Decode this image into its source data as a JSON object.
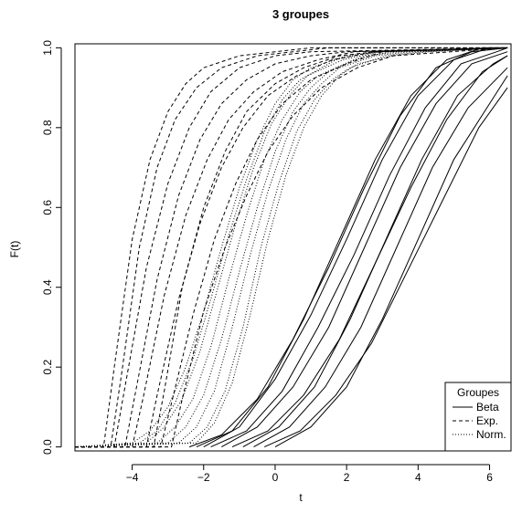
{
  "chart_data": {
    "type": "line",
    "title": "3 groupes",
    "xlabel": "t",
    "ylabel": "F(t)",
    "xlim": [
      -5.6,
      6.6
    ],
    "ylim": [
      -0.01,
      1.01
    ],
    "xticks": [
      -4,
      -2,
      0,
      2,
      4,
      6
    ],
    "xtick_labels": [
      "−4",
      "−2",
      "0",
      "2",
      "4",
      "6"
    ],
    "yticks": [
      0.0,
      0.2,
      0.4,
      0.6,
      0.8,
      1.0
    ],
    "ytick_labels": [
      "0.0",
      "0.2",
      "0.4",
      "0.6",
      "0.8",
      "1.0"
    ],
    "grid": false,
    "legend": {
      "title": "Groupes",
      "position": "bottom-right",
      "entries": [
        {
          "label": "Beta",
          "style": "solid"
        },
        {
          "label": "Exp.",
          "style": "dashed"
        },
        {
          "label": "Norm.",
          "style": "dotted"
        }
      ]
    },
    "series": [
      {
        "style": "solid",
        "curves": [
          {
            "x": [
              -2.4,
              -1.5,
              -0.5,
              0.5,
              1.5,
              2.5,
              3.5,
              4.5,
              5.5,
              6.5
            ],
            "y": [
              0.0,
              0.03,
              0.12,
              0.27,
              0.45,
              0.65,
              0.83,
              0.95,
              0.99,
              1.0
            ]
          },
          {
            "x": [
              -2.0,
              -1.0,
              0.0,
              1.0,
              2.0,
              3.0,
              4.0,
              5.0,
              6.0,
              6.5
            ],
            "y": [
              0.0,
              0.05,
              0.17,
              0.33,
              0.52,
              0.72,
              0.88,
              0.97,
              1.0,
              1.0
            ]
          },
          {
            "x": [
              -1.8,
              -0.8,
              0.2,
              1.2,
              2.2,
              3.2,
              4.2,
              5.2,
              6.2,
              6.5
            ],
            "y": [
              0.0,
              0.04,
              0.14,
              0.3,
              0.48,
              0.68,
              0.85,
              0.96,
              0.99,
              1.0
            ]
          },
          {
            "x": [
              -1.5,
              -0.5,
              0.5,
              1.5,
              2.5,
              3.5,
              4.5,
              5.5,
              6.5
            ],
            "y": [
              0.0,
              0.05,
              0.15,
              0.3,
              0.5,
              0.7,
              0.86,
              0.96,
              0.99
            ]
          },
          {
            "x": [
              -1.2,
              -0.2,
              0.8,
              1.8,
              2.8,
              3.8,
              4.8,
              5.8,
              6.5
            ],
            "y": [
              0.0,
              0.04,
              0.13,
              0.27,
              0.46,
              0.65,
              0.82,
              0.94,
              0.98
            ]
          },
          {
            "x": [
              -0.9,
              0.1,
              1.1,
              2.1,
              3.1,
              4.1,
              5.1,
              6.1,
              6.5
            ],
            "y": [
              0.0,
              0.05,
              0.15,
              0.32,
              0.52,
              0.72,
              0.88,
              0.96,
              0.98
            ]
          },
          {
            "x": [
              -0.6,
              0.4,
              1.4,
              2.4,
              3.4,
              4.4,
              5.4,
              6.5
            ],
            "y": [
              0.0,
              0.05,
              0.15,
              0.3,
              0.5,
              0.7,
              0.85,
              0.95
            ]
          },
          {
            "x": [
              -0.3,
              0.7,
              1.7,
              2.7,
              3.7,
              4.7,
              5.7,
              6.5
            ],
            "y": [
              0.0,
              0.04,
              0.13,
              0.26,
              0.44,
              0.62,
              0.8,
              0.9
            ]
          },
          {
            "x": [
              0.0,
              1.0,
              2.0,
              3.0,
              4.0,
              5.0,
              6.0,
              6.5
            ],
            "y": [
              0.0,
              0.05,
              0.15,
              0.32,
              0.52,
              0.72,
              0.86,
              0.93
            ]
          },
          {
            "x": [
              -2.2,
              -1.2,
              -0.2,
              0.8,
              1.8,
              2.8,
              3.8,
              4.8,
              5.8,
              6.5
            ],
            "y": [
              0.0,
              0.04,
              0.15,
              0.32,
              0.52,
              0.72,
              0.88,
              0.97,
              1.0,
              1.0
            ]
          }
        ]
      },
      {
        "style": "dashed",
        "curves": [
          {
            "x": [
              -5.6,
              -4.8,
              -4.5,
              -4.0,
              -3.5,
              -3.0,
              -2.5,
              -2.0,
              -1.0,
              0.0,
              1.0,
              2.0,
              6.5
            ],
            "y": [
              0.0,
              0.0,
              0.2,
              0.52,
              0.72,
              0.84,
              0.91,
              0.95,
              0.98,
              0.99,
              1.0,
              1.0,
              1.0
            ]
          },
          {
            "x": [
              -5.6,
              -4.5,
              -4.2,
              -3.6,
              -3.0,
              -2.4,
              -1.8,
              -1.0,
              0.0,
              1.0,
              6.5
            ],
            "y": [
              0.0,
              0.0,
              0.15,
              0.45,
              0.66,
              0.8,
              0.89,
              0.95,
              0.98,
              0.99,
              1.0
            ]
          },
          {
            "x": [
              -5.6,
              -4.2,
              -3.9,
              -3.3,
              -2.7,
              -2.1,
              -1.5,
              -0.8,
              0.0,
              1.0,
              2.0,
              6.5
            ],
            "y": [
              0.0,
              0.0,
              0.14,
              0.42,
              0.63,
              0.77,
              0.86,
              0.92,
              0.96,
              0.98,
              0.99,
              1.0
            ]
          },
          {
            "x": [
              -5.6,
              -4.0,
              -3.7,
              -3.1,
              -2.5,
              -1.9,
              -1.3,
              -0.6,
              0.2,
              1.2,
              2.2,
              6.5
            ],
            "y": [
              0.0,
              0.0,
              0.12,
              0.38,
              0.58,
              0.72,
              0.82,
              0.89,
              0.94,
              0.97,
              0.99,
              1.0
            ]
          },
          {
            "x": [
              -5.6,
              -3.6,
              -3.3,
              -2.7,
              -2.1,
              -1.5,
              -0.9,
              -0.2,
              0.6,
              1.6,
              2.8,
              6.5
            ],
            "y": [
              0.0,
              0.0,
              0.13,
              0.37,
              0.56,
              0.7,
              0.8,
              0.88,
              0.93,
              0.97,
              0.99,
              1.0
            ]
          },
          {
            "x": [
              -5.6,
              -3.2,
              -2.9,
              -2.3,
              -1.7,
              -1.1,
              -0.5,
              0.2,
              1.0,
              2.0,
              3.0,
              6.5
            ],
            "y": [
              0.0,
              0.0,
              0.11,
              0.33,
              0.52,
              0.66,
              0.77,
              0.86,
              0.92,
              0.96,
              0.99,
              1.0
            ]
          },
          {
            "x": [
              -5.6,
              -2.9,
              -2.6,
              -2.0,
              -1.4,
              -0.8,
              -0.2,
              0.5,
              1.3,
              2.3,
              3.3,
              6.5
            ],
            "y": [
              0.0,
              0.0,
              0.12,
              0.34,
              0.5,
              0.63,
              0.74,
              0.83,
              0.9,
              0.95,
              0.98,
              1.0
            ]
          },
          {
            "x": [
              -5.6,
              -4.6,
              -4.3,
              -3.8,
              -3.3,
              -2.8,
              -2.2,
              -1.5,
              -0.5,
              0.5,
              1.5,
              6.5
            ],
            "y": [
              0.0,
              0.0,
              0.18,
              0.5,
              0.7,
              0.82,
              0.9,
              0.95,
              0.98,
              0.99,
              1.0,
              1.0
            ]
          },
          {
            "x": [
              -5.6,
              -3.4,
              -3.1,
              -2.6,
              -2.0,
              -1.4,
              -0.8,
              0.0,
              0.8,
              1.8,
              2.8,
              6.5
            ],
            "y": [
              0.0,
              0.0,
              0.14,
              0.4,
              0.6,
              0.74,
              0.84,
              0.91,
              0.95,
              0.98,
              0.99,
              1.0
            ]
          }
        ]
      },
      {
        "style": "dotted",
        "curves": [
          {
            "x": [
              -5.6,
              -4.0,
              -3.5,
              -3.0,
              -2.5,
              -2.0,
              -1.5,
              -1.0,
              -0.5,
              0.0,
              0.5,
              1.0,
              2.0,
              3.0,
              6.5
            ],
            "y": [
              0.0,
              0.01,
              0.04,
              0.1,
              0.2,
              0.34,
              0.5,
              0.65,
              0.77,
              0.86,
              0.92,
              0.95,
              0.98,
              0.99,
              1.0
            ]
          },
          {
            "x": [
              -5.6,
              -3.6,
              -3.1,
              -2.6,
              -2.1,
              -1.6,
              -1.1,
              -0.6,
              -0.1,
              0.4,
              0.9,
              1.9,
              2.9,
              6.5
            ],
            "y": [
              0.0,
              0.01,
              0.05,
              0.12,
              0.24,
              0.4,
              0.56,
              0.7,
              0.81,
              0.88,
              0.93,
              0.97,
              0.99,
              1.0
            ]
          },
          {
            "x": [
              -5.6,
              -3.3,
              -2.8,
              -2.3,
              -1.8,
              -1.3,
              -0.8,
              -0.3,
              0.2,
              0.7,
              1.2,
              2.2,
              3.2,
              6.5
            ],
            "y": [
              0.0,
              0.01,
              0.05,
              0.12,
              0.25,
              0.42,
              0.58,
              0.72,
              0.82,
              0.89,
              0.93,
              0.97,
              0.99,
              1.0
            ]
          },
          {
            "x": [
              -5.6,
              -3.0,
              -2.5,
              -2.0,
              -1.5,
              -1.0,
              -0.5,
              0.0,
              0.5,
              1.0,
              1.5,
              2.5,
              3.5,
              6.5
            ],
            "y": [
              0.0,
              0.01,
              0.05,
              0.13,
              0.27,
              0.44,
              0.6,
              0.74,
              0.84,
              0.9,
              0.94,
              0.98,
              0.99,
              1.0
            ]
          },
          {
            "x": [
              -5.6,
              -2.7,
              -2.2,
              -1.7,
              -1.2,
              -0.7,
              -0.2,
              0.3,
              0.8,
              1.3,
              1.8,
              2.8,
              3.8,
              6.5
            ],
            "y": [
              0.0,
              0.01,
              0.05,
              0.14,
              0.3,
              0.48,
              0.64,
              0.77,
              0.86,
              0.91,
              0.95,
              0.98,
              0.99,
              1.0
            ]
          },
          {
            "x": [
              -5.6,
              -2.4,
              -1.9,
              -1.4,
              -0.9,
              -0.4,
              0.1,
              0.6,
              1.1,
              1.6,
              2.1,
              3.1,
              4.1,
              6.5
            ],
            "y": [
              0.0,
              0.01,
              0.05,
              0.14,
              0.3,
              0.5,
              0.66,
              0.79,
              0.87,
              0.92,
              0.95,
              0.98,
              0.99,
              1.0
            ]
          },
          {
            "x": [
              -5.6,
              -2.2,
              -1.7,
              -1.2,
              -0.7,
              -0.2,
              0.3,
              0.8,
              1.3,
              1.8,
              2.3,
              3.3,
              4.3,
              6.5
            ],
            "y": [
              0.0,
              0.01,
              0.06,
              0.16,
              0.33,
              0.52,
              0.68,
              0.8,
              0.88,
              0.93,
              0.96,
              0.98,
              0.99,
              1.0
            ]
          },
          {
            "x": [
              -5.6,
              -3.8,
              -3.3,
              -2.8,
              -2.3,
              -1.8,
              -1.3,
              -0.8,
              -0.3,
              0.2,
              0.7,
              1.7,
              2.7,
              6.5
            ],
            "y": [
              0.0,
              0.01,
              0.04,
              0.11,
              0.22,
              0.37,
              0.53,
              0.67,
              0.79,
              0.87,
              0.92,
              0.97,
              0.99,
              1.0
            ]
          }
        ]
      }
    ]
  }
}
